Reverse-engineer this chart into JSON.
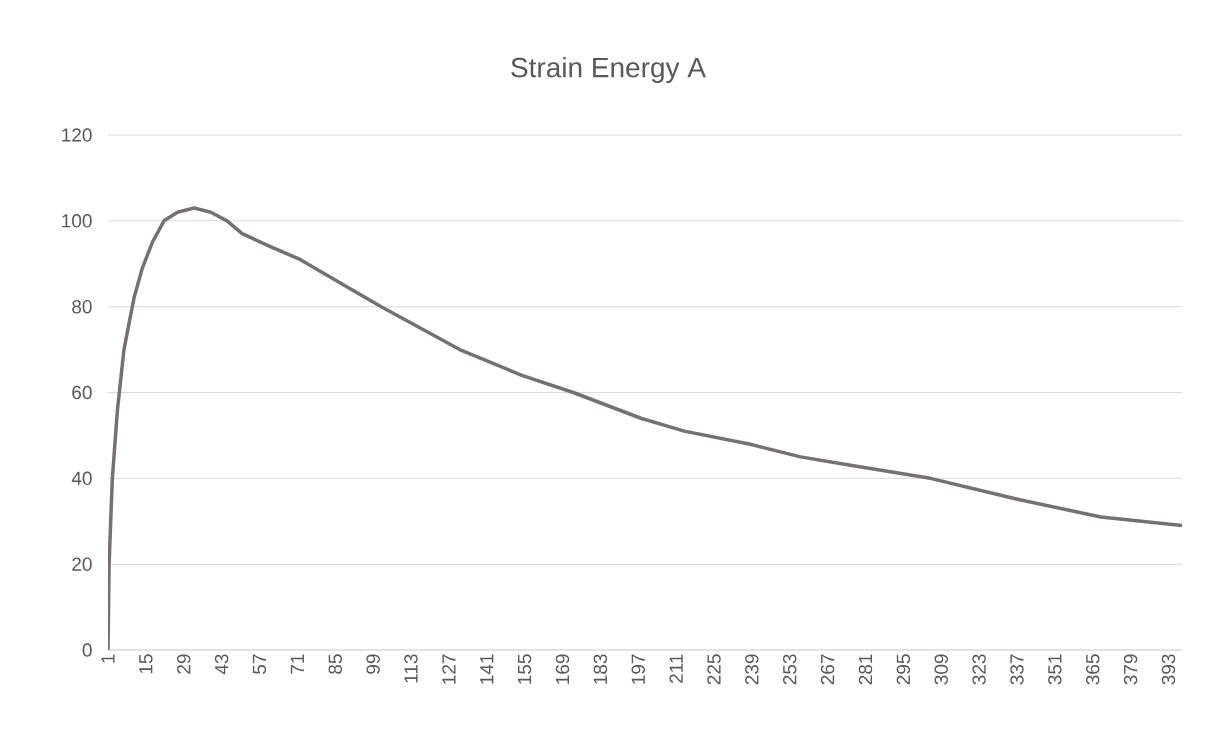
{
  "chart_data": {
    "type": "line",
    "title": "Strain Energy A",
    "x": [
      1,
      1.4,
      2.6,
      4.5,
      6.9,
      10.6,
      13.7,
      17.4,
      21.7,
      26.7,
      32.8,
      39,
      45,
      50.6,
      61,
      72,
      91,
      102,
      131,
      154,
      173,
      198,
      214,
      238,
      257,
      276,
      305,
      338,
      368,
      398
    ],
    "values": [
      0,
      20,
      40,
      56,
      70,
      82,
      89,
      95,
      100,
      102,
      103,
      102,
      100,
      97,
      94,
      91,
      84,
      80,
      70,
      64,
      60,
      54,
      51,
      48,
      45,
      43,
      40,
      35,
      31,
      29
    ],
    "color": "#767171",
    "xlim": [
      1,
      398
    ],
    "xticks": [
      1,
      15,
      29,
      43,
      57,
      71,
      85,
      99,
      113,
      127,
      141,
      155,
      169,
      183,
      197,
      211,
      225,
      239,
      253,
      267,
      281,
      295,
      309,
      323,
      337,
      351,
      365,
      379,
      393
    ],
    "ylim": [
      0,
      120
    ],
    "yticks": [
      0,
      20,
      40,
      60,
      80,
      100,
      120
    ],
    "grid": "y",
    "marker": "none",
    "line_style": "solid"
  }
}
